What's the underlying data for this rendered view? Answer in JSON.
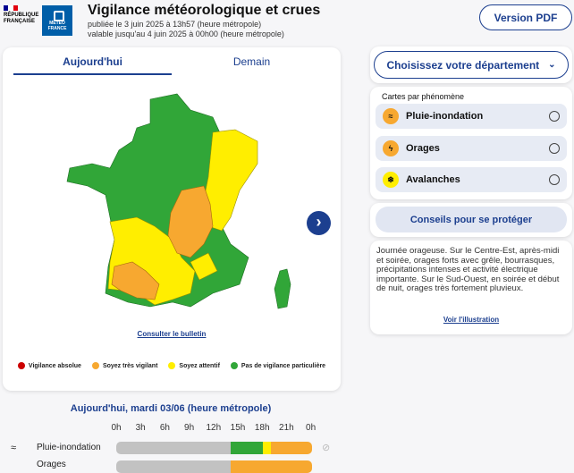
{
  "header": {
    "republique": [
      "RÉPUBLIQUE",
      "FRANÇAISE"
    ],
    "logo": "METEO FRANCE",
    "title": "Vigilance météorologique et crues",
    "published": "publiée le 3 juin 2025 à 13h57 (heure métropole)",
    "valid": "valable jusqu'au 4 juin 2025 à 00h00 (heure métropole)",
    "pdf_button": "Version PDF"
  },
  "map_card": {
    "tabs": [
      {
        "label": "Aujourd'hui",
        "active": true
      },
      {
        "label": "Demain",
        "active": false
      }
    ],
    "bulletin_link": "Consulter le bulletin",
    "next_icon": "chevron-right-icon",
    "legend": [
      {
        "label": "Vigilance absolue",
        "color": "#cc0000"
      },
      {
        "label": "Soyez très vigilant",
        "color": "#f7a830"
      },
      {
        "label": "Soyez attentif",
        "color": "#ffee00"
      },
      {
        "label": "Pas de vigilance particulière",
        "color": "#31a638"
      }
    ]
  },
  "sidebar": {
    "department_select": "Choisissez votre département",
    "phenomena_title": "Cartes par phénomène",
    "phenomena": [
      {
        "label": "Pluie-inondation",
        "icon": "rain-flood-icon"
      },
      {
        "label": "Orages",
        "icon": "thunderstorm-icon"
      },
      {
        "label": "Avalanches",
        "icon": "avalanche-icon"
      }
    ],
    "advice_button": "Conseils pour se protéger",
    "bulletin_text": "Journée orageuse. Sur le Centre-Est, après-midi et soirée, orages forts avec grêle, bourrasques, précipitations intenses et activité électrique importante. Sur le Sud-Ouest, en soirée et début de nuit, orages très fortement pluvieux.",
    "illustration_link": "Voir l'illustration"
  },
  "timeline": {
    "title": "Aujourd'hui, mardi 03/06 (heure métropole)",
    "hours": [
      "0h",
      "3h",
      "6h",
      "9h",
      "12h",
      "15h",
      "18h",
      "21h",
      "0h"
    ],
    "rows": [
      {
        "label": "Pluie-inondation",
        "segments": [
          {
            "from": 0,
            "to": 14,
            "color": "#c2c2c2"
          },
          {
            "from": 14,
            "to": 18,
            "color": "#31a638"
          },
          {
            "from": 18,
            "to": 19,
            "color": "#ffee00"
          },
          {
            "from": 19,
            "to": 24,
            "color": "#f7a830"
          }
        ]
      },
      {
        "label": "Orages",
        "segments": [
          {
            "from": 0,
            "to": 14,
            "color": "#c2c2c2"
          },
          {
            "from": 14,
            "to": 24,
            "color": "#f7a830"
          }
        ]
      }
    ]
  }
}
